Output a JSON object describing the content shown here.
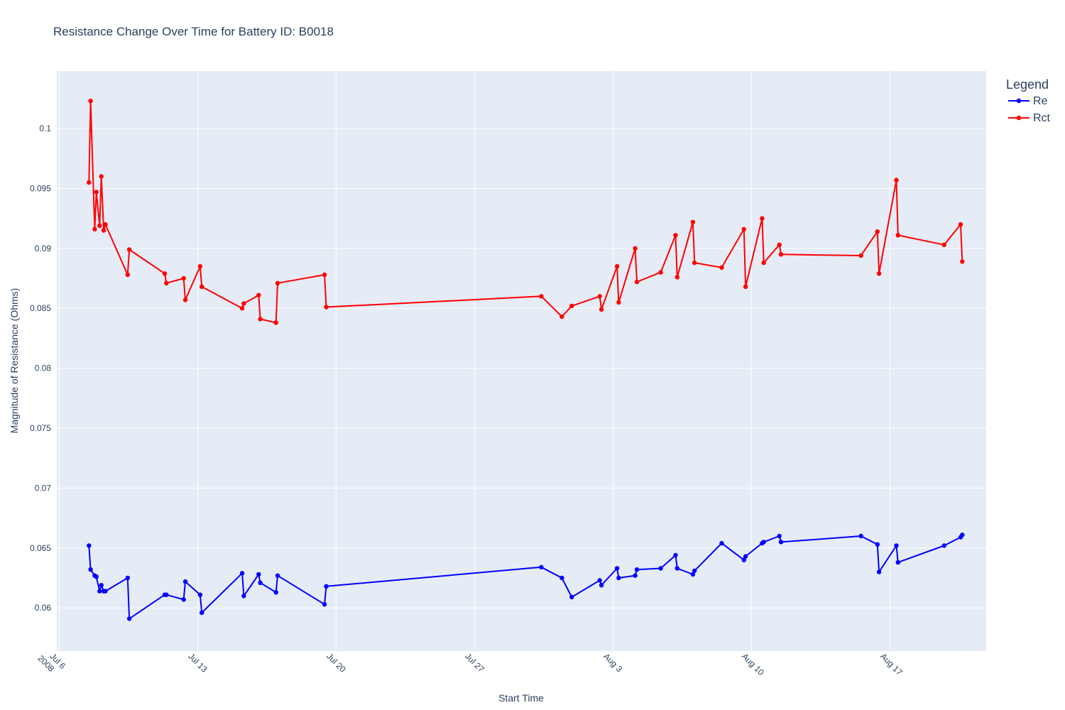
{
  "chart_data": {
    "type": "line",
    "title": "Resistance Change Over Time for Battery ID: B0018",
    "xlabel": "Start Time",
    "ylabel": "Magnitude of Resistance (Ohms)",
    "xlim": [
      "2008-07-05T21:00",
      "2008-08-21T21:00"
    ],
    "ylim": [
      0.0564,
      0.1048
    ],
    "x_ticks": [
      {
        "date": "2008-07-06",
        "label": "Jul 6",
        "sublabel": "2008"
      },
      {
        "date": "2008-07-13",
        "label": "Jul 13",
        "sublabel": ""
      },
      {
        "date": "2008-07-20",
        "label": "Jul 20",
        "sublabel": ""
      },
      {
        "date": "2008-07-27",
        "label": "Jul 27",
        "sublabel": ""
      },
      {
        "date": "2008-08-03",
        "label": "Aug 3",
        "sublabel": ""
      },
      {
        "date": "2008-08-10",
        "label": "Aug 10",
        "sublabel": ""
      },
      {
        "date": "2008-08-17",
        "label": "Aug 17",
        "sublabel": ""
      }
    ],
    "y_ticks": [
      {
        "value": 0.06,
        "label": "0.06"
      },
      {
        "value": 0.065,
        "label": "0.065"
      },
      {
        "value": 0.07,
        "label": "0.07"
      },
      {
        "value": 0.075,
        "label": "0.075"
      },
      {
        "value": 0.08,
        "label": "0.08"
      },
      {
        "value": 0.085,
        "label": "0.085"
      },
      {
        "value": 0.09,
        "label": "0.09"
      },
      {
        "value": 0.095,
        "label": "0.095"
      },
      {
        "value": 0.1,
        "label": "0.1"
      }
    ],
    "x": [
      "2008-07-07T12:00",
      "2008-07-07T14:00",
      "2008-07-07T19:00",
      "2008-07-07T21:00",
      "2008-07-08T01:00",
      "2008-07-08T03:00",
      "2008-07-08T06:00",
      "2008-07-08T08:00",
      "2008-07-09T11:00",
      "2008-07-09T13:00",
      "2008-07-11T08:00",
      "2008-07-11T10:00",
      "2008-07-12T07:00",
      "2008-07-12T09:00",
      "2008-07-13T03:00",
      "2008-07-13T05:00",
      "2008-07-15T06:00",
      "2008-07-15T08:00",
      "2008-07-16T02:00",
      "2008-07-16T04:00",
      "2008-07-16T23:00",
      "2008-07-17T01:00",
      "2008-07-19T10:00",
      "2008-07-19T12:00",
      "2008-07-30T09:00",
      "2008-07-31T10:00",
      "2008-07-31T22:00",
      "2008-08-02T08:00",
      "2008-08-02T10:00",
      "2008-08-03T05:00",
      "2008-08-03T07:00",
      "2008-08-04T03:00",
      "2008-08-04T05:00",
      "2008-08-05T10:00",
      "2008-08-06T04:00",
      "2008-08-06T06:00",
      "2008-08-07T01:00",
      "2008-08-07T03:00",
      "2008-08-08T12:00",
      "2008-08-09T15:00",
      "2008-08-09T17:00",
      "2008-08-10T13:00",
      "2008-08-10T15:00",
      "2008-08-11T10:00",
      "2008-08-11T12:00",
      "2008-08-15T13:00",
      "2008-08-16T09:00",
      "2008-08-16T11:00",
      "2008-08-17T08:00",
      "2008-08-17T10:00",
      "2008-08-19T18:00",
      "2008-08-20T14:00",
      "2008-08-20T16:00"
    ],
    "series": [
      {
        "name": "Re",
        "color": "#0000ff",
        "values": [
          0.0652,
          0.0632,
          0.0627,
          0.0626,
          0.0614,
          0.0619,
          0.0614,
          0.0614,
          0.0625,
          0.0591,
          0.0611,
          0.0611,
          0.0607,
          0.0622,
          0.0611,
          0.0596,
          0.0629,
          0.061,
          0.0628,
          0.0621,
          0.0613,
          0.0627,
          0.0603,
          0.0618,
          0.0634,
          0.0625,
          0.0609,
          0.0623,
          0.0619,
          0.0633,
          0.0625,
          0.0627,
          0.0632,
          0.0633,
          0.0644,
          0.0633,
          0.0628,
          0.0631,
          0.0654,
          0.064,
          0.0643,
          0.0654,
          0.0655,
          0.066,
          0.0655,
          0.066,
          0.0653,
          0.063,
          0.0652,
          0.0638,
          0.0652,
          0.0659,
          0.0661
        ]
      },
      {
        "name": "Rct",
        "color": "#ff0000",
        "values": [
          0.0955,
          0.1023,
          0.0916,
          0.0947,
          0.0919,
          0.096,
          0.0915,
          0.092,
          0.0878,
          0.0899,
          0.0879,
          0.0871,
          0.0875,
          0.0857,
          0.0885,
          0.0868,
          0.085,
          0.0854,
          0.0861,
          0.0841,
          0.0838,
          0.0871,
          0.0878,
          0.0851,
          0.086,
          0.0843,
          0.0852,
          0.086,
          0.0849,
          0.0885,
          0.0855,
          0.09,
          0.0872,
          0.088,
          0.0911,
          0.0876,
          0.0922,
          0.0888,
          0.0884,
          0.0916,
          0.0868,
          0.0925,
          0.0888,
          0.0903,
          0.0895,
          0.0894,
          0.0914,
          0.0879,
          0.0957,
          0.0911,
          0.0903,
          0.092,
          0.0889
        ]
      }
    ],
    "legend": {
      "title": "Legend",
      "position": "top-right"
    },
    "grid": true,
    "background": "#e5ecf6"
  }
}
